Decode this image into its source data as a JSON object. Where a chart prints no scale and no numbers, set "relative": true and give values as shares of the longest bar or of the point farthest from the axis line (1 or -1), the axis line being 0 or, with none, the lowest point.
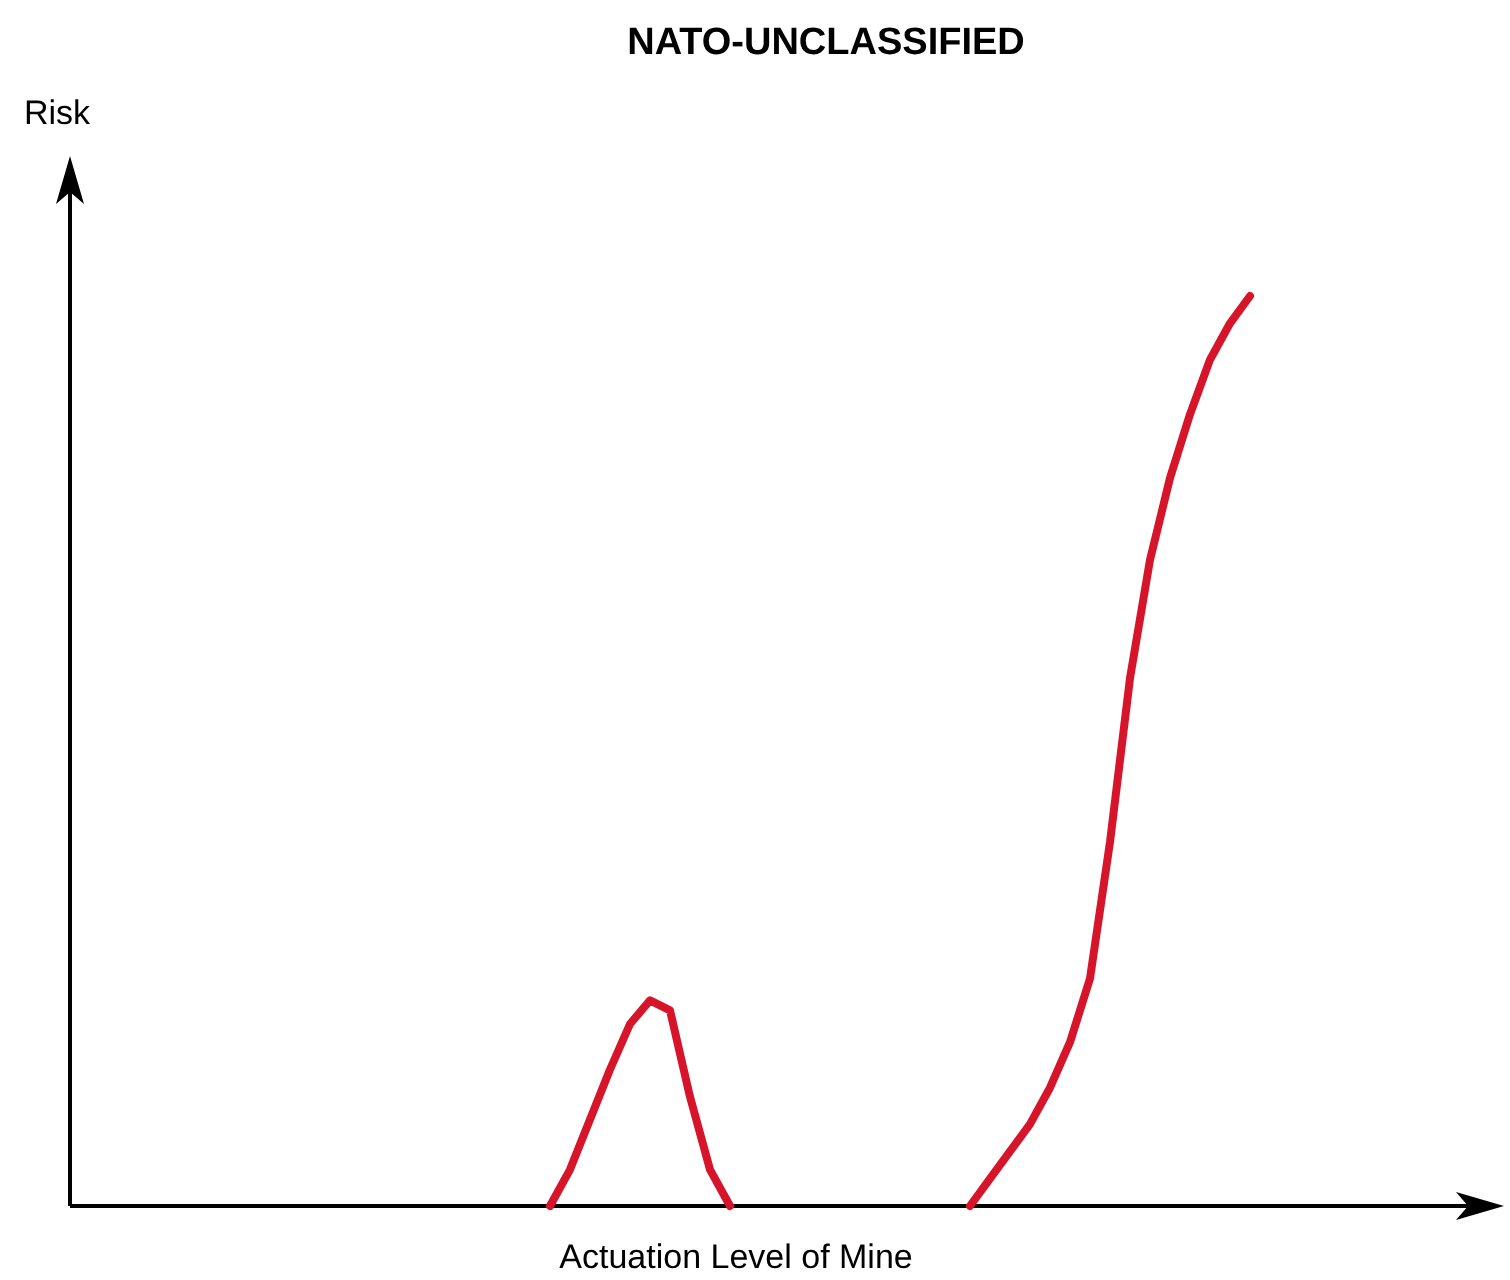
{
  "chart_data": {
    "type": "line",
    "title": "NATO-UNCLASSIFIED",
    "xlabel": "Actuation Level of Mine",
    "ylabel": "Risk",
    "relative": true,
    "categories": [
      null,
      null,
      null,
      null,
      null,
      null,
      null,
      null,
      null,
      null,
      null,
      null,
      null,
      null,
      null,
      null,
      null,
      null,
      null,
      null,
      null,
      null,
      null,
      null,
      null,
      null,
      null,
      null,
      null,
      null,
      null,
      null,
      null,
      null,
      null,
      null,
      null,
      null,
      null,
      null,
      null,
      null,
      null,
      null,
      null,
      null,
      null,
      null,
      null,
      null,
      null,
      null,
      null,
      null,
      null,
      null,
      null,
      null,
      null,
      null,
      null,
      null,
      null,
      null,
      null,
      null,
      null,
      null,
      null,
      null,
      null
    ],
    "series": [
      {
        "color": "#d7152a",
        "values": [
          null,
          null,
          null,
          null,
          null,
          null,
          null,
          null,
          null,
          null,
          null,
          null,
          null,
          null,
          null,
          null,
          null,
          null,
          null,
          null,
          null,
          null,
          null,
          null,
          0,
          0.04,
          0.095,
          0.15,
          0.2,
          0.226,
          0.215,
          0.12,
          0.04,
          0,
          null,
          null,
          null,
          null,
          null,
          null,
          null,
          null,
          null,
          null,
          null,
          null,
          null,
          null,
          null,
          null,
          null,
          null,
          null,
          null,
          null,
          null,
          null,
          null,
          null,
          null,
          null,
          null,
          null,
          null,
          null,
          null,
          null,
          null,
          null,
          null,
          null
        ]
      },
      {
        "color": "#d7152a",
        "values": [
          null,
          null,
          null,
          null,
          null,
          null,
          null,
          null,
          null,
          null,
          null,
          null,
          null,
          null,
          null,
          null,
          null,
          null,
          null,
          null,
          null,
          null,
          null,
          null,
          null,
          null,
          null,
          null,
          null,
          null,
          null,
          null,
          null,
          null,
          null,
          null,
          null,
          null,
          null,
          null,
          null,
          null,
          null,
          null,
          null,
          0,
          0.03,
          0.06,
          0.09,
          0.13,
          0.18,
          0.25,
          0.4,
          0.58,
          0.71,
          0.8,
          0.87,
          0.93,
          0.97,
          1,
          null,
          null,
          null,
          null,
          null,
          null,
          null,
          null,
          null,
          null,
          null
        ]
      }
    ]
  }
}
